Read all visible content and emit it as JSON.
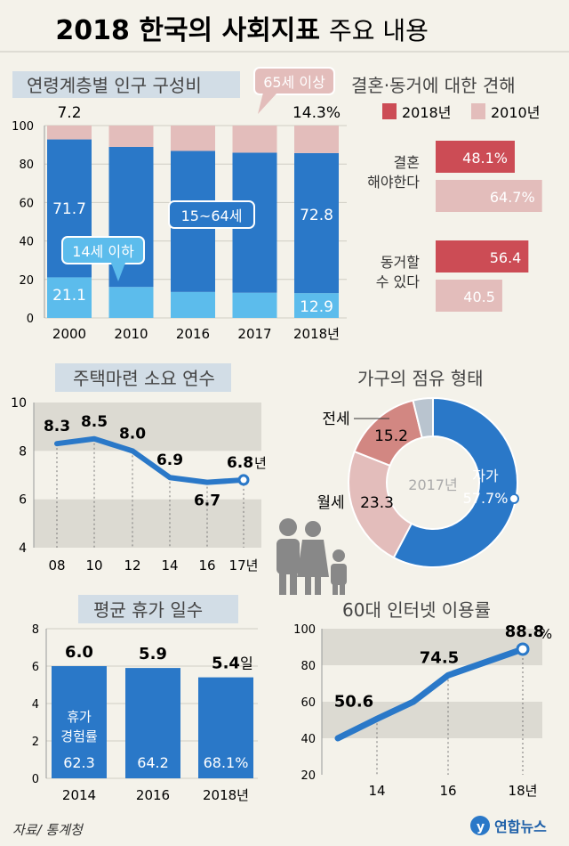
{
  "title": "2018 한국의 사회지표",
  "title_suffix": "주요 내용",
  "source": "자료/ 통계청",
  "logo": "연합뉴스",
  "colors": {
    "page": "#f4f2ea",
    "blue": "#2a78c8",
    "lightblue": "#5cbcec",
    "pink": "#e3bdbb",
    "red": "#cc4c55",
    "gray_band": "#dcdad2",
    "title_bar": "#d2dde6"
  },
  "chart_data": [
    {
      "id": "age",
      "type": "bar",
      "title": "연령계층별 인구 구성비",
      "categories": [
        "2000",
        "2010",
        "2016",
        "2017",
        "2018년"
      ],
      "series": [
        {
          "name": "14세 이하",
          "values": [
            21.1,
            16.1,
            13.5,
            13.1,
            12.9
          ]
        },
        {
          "name": "15~64세",
          "values": [
            71.7,
            72.8,
            73.3,
            72.8,
            72.8
          ]
        },
        {
          "name": "65세 이상",
          "values": [
            7.2,
            11.1,
            13.2,
            14.1,
            14.3
          ]
        }
      ],
      "ylim": [
        0,
        100
      ],
      "yticks": [
        "0",
        "20",
        "40",
        "60",
        "80",
        "100"
      ],
      "labels": {
        "top_first": "7.2",
        "top_last": "14.3%",
        "mid_first": "71.7",
        "mid_last": "72.8",
        "bot_first": "21.1",
        "bot_last": "12.9"
      },
      "callouts": {
        "child": "14세 이하",
        "working": "15~64세",
        "elderly": "65세 이상"
      }
    },
    {
      "id": "marriage",
      "type": "bar",
      "title": "결혼·동거에 대한 견해",
      "legend": [
        "2018년",
        "2010년"
      ],
      "categories": [
        "결혼 해야한다",
        "동거할 수 있다"
      ],
      "category_lines": [
        [
          "결혼",
          "해야한다"
        ],
        [
          "동거할",
          "수 있다"
        ]
      ],
      "series": [
        {
          "name": "2018년",
          "values": [
            48.1,
            56.4
          ],
          "labels": [
            "48.1%",
            "56.4"
          ]
        },
        {
          "name": "2010년",
          "values": [
            64.7,
            40.5
          ],
          "labels": [
            "64.7%",
            "40.5"
          ]
        }
      ]
    },
    {
      "id": "housing",
      "type": "line",
      "title": "주택마련 소요 연수",
      "x": [
        "08",
        "10",
        "12",
        "14",
        "16",
        "17년"
      ],
      "y": [
        8.3,
        8.5,
        8.0,
        6.9,
        6.7,
        6.8
      ],
      "point_labels": [
        "8.3",
        "8.5",
        "8.0",
        "6.9",
        "6.7",
        "6.8"
      ],
      "unit": "년",
      "ylim": [
        4,
        10
      ],
      "yticks": [
        "4",
        "6",
        "8",
        "10"
      ]
    },
    {
      "id": "tenure",
      "type": "pie",
      "title": "가구의 점유 형태",
      "center_label": "2017년",
      "slices": [
        {
          "label": "자가",
          "value": 57.7,
          "text": "57.7%"
        },
        {
          "label": "월세",
          "value": 23.3,
          "text": "23.3"
        },
        {
          "label": "전세",
          "value": 15.2,
          "text": "15.2"
        },
        {
          "label": "",
          "value": 3.8,
          "text": ""
        }
      ]
    },
    {
      "id": "vacation",
      "type": "bar",
      "title": "평균 휴가 일수",
      "categories": [
        "2014",
        "2016",
        "2018년"
      ],
      "values": [
        6.0,
        5.9,
        5.4
      ],
      "value_labels": [
        "6.0",
        "5.9",
        "5.4"
      ],
      "unit": "일",
      "experience_rate": [
        "62.3",
        "64.2",
        "68.1%"
      ],
      "experience_label": [
        "휴가",
        "경험률"
      ],
      "ylim": [
        0,
        8
      ],
      "yticks": [
        "0",
        "2",
        "4",
        "6",
        "8"
      ]
    },
    {
      "id": "internet",
      "type": "line",
      "title": "60대 인터넷 이용률",
      "x": [
        "14",
        "16",
        "18년"
      ],
      "y": [
        50.6,
        74.5,
        88.8
      ],
      "point_labels": [
        "50.6",
        "74.5",
        "88.8"
      ],
      "unit": "%",
      "ylim": [
        20,
        100
      ],
      "yticks": [
        "20",
        "40",
        "60",
        "80",
        "100"
      ]
    }
  ]
}
